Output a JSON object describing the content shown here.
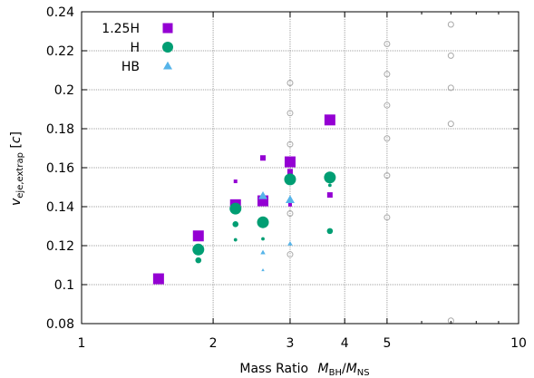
{
  "chart_data": {
    "type": "scatter",
    "xlabel": "Mass Ratio",
    "xlabel_math": "M",
    "xlabel_num_sub": "BH",
    "xlabel_slash": "/",
    "xlabel_den_sub": "NS",
    "ylabel": "v",
    "ylabel_sub": "eje,extrap",
    "ylabel_unit_open": " [",
    "ylabel_unit": "c",
    "ylabel_unit_close": "]",
    "xscale": "log",
    "xlim": [
      1,
      10
    ],
    "ylim": [
      0.08,
      0.24
    ],
    "grid": true,
    "legend_position": "top-left",
    "x_ticks": [
      {
        "value": 1,
        "label": "1"
      },
      {
        "value": 2,
        "label": "2"
      },
      {
        "value": 3,
        "label": "3"
      },
      {
        "value": 4,
        "label": "4"
      },
      {
        "value": 5,
        "label": "5"
      },
      {
        "value": 10,
        "label": "10"
      }
    ],
    "x_minor_ticks": [
      6,
      7,
      8,
      9
    ],
    "y_ticks": [
      {
        "value": 0.08,
        "label": "0.08"
      },
      {
        "value": 0.1,
        "label": "0.1"
      },
      {
        "value": 0.12,
        "label": "0.12"
      },
      {
        "value": 0.14,
        "label": "0.14"
      },
      {
        "value": 0.16,
        "label": "0.16"
      },
      {
        "value": 0.18,
        "label": "0.18"
      },
      {
        "value": 0.2,
        "label": "0.2"
      },
      {
        "value": 0.22,
        "label": "0.22"
      },
      {
        "value": 0.24,
        "label": "0.24"
      }
    ],
    "series": [
      {
        "name": "1.25H",
        "marker": "square",
        "color": "#9400d3",
        "points": [
          {
            "x": 1.5,
            "y": 0.103,
            "size": "large"
          },
          {
            "x": 1.85,
            "y": 0.125,
            "size": "large"
          },
          {
            "x": 2.25,
            "y": 0.141,
            "size": "large"
          },
          {
            "x": 2.25,
            "y": 0.153,
            "size": "tiny"
          },
          {
            "x": 2.6,
            "y": 0.143,
            "size": "large"
          },
          {
            "x": 2.6,
            "y": 0.165,
            "size": "small"
          },
          {
            "x": 3.0,
            "y": 0.163,
            "size": "large"
          },
          {
            "x": 3.0,
            "y": 0.158,
            "size": "small"
          },
          {
            "x": 3.0,
            "y": 0.141,
            "size": "tiny"
          },
          {
            "x": 3.7,
            "y": 0.1845,
            "size": "large"
          },
          {
            "x": 3.7,
            "y": 0.146,
            "size": "small"
          }
        ]
      },
      {
        "name": "H",
        "marker": "circle",
        "color": "#009e73",
        "points": [
          {
            "x": 1.85,
            "y": 0.118,
            "size": "large"
          },
          {
            "x": 1.85,
            "y": 0.1125,
            "size": "small"
          },
          {
            "x": 2.25,
            "y": 0.139,
            "size": "large"
          },
          {
            "x": 2.25,
            "y": 0.131,
            "size": "small"
          },
          {
            "x": 2.25,
            "y": 0.123,
            "size": "tiny"
          },
          {
            "x": 2.6,
            "y": 0.132,
            "size": "large"
          },
          {
            "x": 2.6,
            "y": 0.1235,
            "size": "tiny"
          },
          {
            "x": 3.0,
            "y": 0.154,
            "size": "large"
          },
          {
            "x": 3.7,
            "y": 0.155,
            "size": "large"
          },
          {
            "x": 3.7,
            "y": 0.151,
            "size": "tiny"
          },
          {
            "x": 3.7,
            "y": 0.1275,
            "size": "small"
          }
        ]
      },
      {
        "name": "HB",
        "marker": "triangle",
        "color": "#56b4e9",
        "points": [
          {
            "x": 2.6,
            "y": 0.1455,
            "size": "large"
          },
          {
            "x": 2.6,
            "y": 0.1165,
            "size": "small"
          },
          {
            "x": 2.6,
            "y": 0.1075,
            "size": "tiny"
          },
          {
            "x": 3.0,
            "y": 0.1435,
            "size": "large"
          },
          {
            "x": 3.0,
            "y": 0.121,
            "size": "small"
          }
        ]
      },
      {
        "marker": "open-circle",
        "color": "#a9a9a9",
        "points": [
          {
            "x": 3.0,
            "y": 0.2035,
            "size": "small"
          },
          {
            "x": 3.0,
            "y": 0.188,
            "size": "small"
          },
          {
            "x": 3.0,
            "y": 0.172,
            "size": "small"
          },
          {
            "x": 3.0,
            "y": 0.1365,
            "size": "small"
          },
          {
            "x": 3.0,
            "y": 0.1155,
            "size": "small"
          },
          {
            "x": 5.0,
            "y": 0.2235,
            "size": "small"
          },
          {
            "x": 5.0,
            "y": 0.208,
            "size": "small"
          },
          {
            "x": 5.0,
            "y": 0.192,
            "size": "small"
          },
          {
            "x": 5.0,
            "y": 0.175,
            "size": "small"
          },
          {
            "x": 5.0,
            "y": 0.156,
            "size": "small"
          },
          {
            "x": 5.0,
            "y": 0.1345,
            "size": "small"
          },
          {
            "x": 7.0,
            "y": 0.2335,
            "size": "small"
          },
          {
            "x": 7.0,
            "y": 0.2175,
            "size": "small"
          },
          {
            "x": 7.0,
            "y": 0.201,
            "size": "small"
          },
          {
            "x": 7.0,
            "y": 0.1825,
            "size": "small"
          },
          {
            "x": 7.0,
            "y": 0.0815,
            "size": "small"
          }
        ]
      }
    ]
  }
}
